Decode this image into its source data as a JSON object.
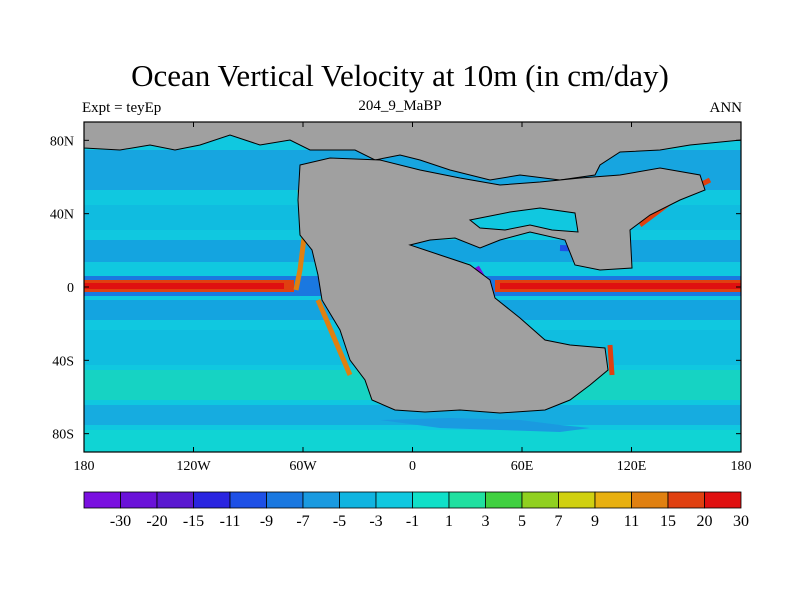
{
  "title": "Ocean Vertical Velocity at 10m (in cm/day)",
  "subtitle_left": "Expt = teyEp",
  "subtitle_center": "204_9_MaBP",
  "subtitle_right": "ANN",
  "x_axis": {
    "labels": [
      "180",
      "120W",
      "60W",
      "0",
      "60E",
      "120E",
      "180"
    ],
    "lon": [
      -180,
      -120,
      -60,
      0,
      60,
      120,
      180
    ]
  },
  "y_axis": {
    "labels": [
      "80N",
      "40N",
      "0",
      "40S",
      "80S"
    ],
    "lat": [
      80,
      40,
      0,
      -40,
      -80
    ]
  },
  "colorbar": {
    "labels": [
      "-30",
      "-20",
      "-15",
      "-11",
      "-9",
      "-7",
      "-5",
      "-3",
      "-1",
      "1",
      "3",
      "5",
      "7",
      "9",
      "11",
      "15",
      "20",
      "30"
    ],
    "colors": [
      "#7a10e0",
      "#6a12d8",
      "#5a18d0",
      "#2a25e0",
      "#1e50e6",
      "#1a78e0",
      "#1a9ae0",
      "#10b4e0",
      "#10c8e0",
      "#10e0c8",
      "#20e0a0",
      "#40d040",
      "#90d020",
      "#d0d010",
      "#e8b010",
      "#e08010",
      "#e04010",
      "#e01010"
    ]
  },
  "colors": {
    "ocean_base": "#10c8e0",
    "land": "#a0a0a0",
    "equator_band": "#e01010"
  }
}
